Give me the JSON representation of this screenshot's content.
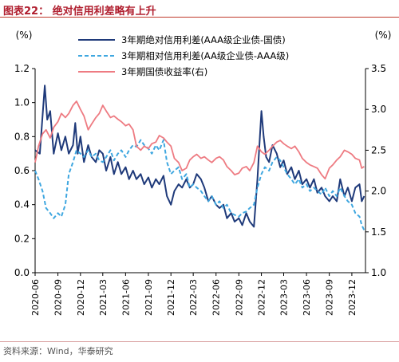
{
  "figure_title": "图表22： 绝对信用利差略有上升",
  "source": "资料来源：Wind，华泰研究",
  "chart_data": {
    "type": "line",
    "title": "",
    "y_left_label": "(%)",
    "y_right_label": "(%)",
    "ylim_left": [
      0.0,
      1.2
    ],
    "ylim_right": [
      1.0,
      3.5
    ],
    "yticks_left": [
      "0.0",
      "0.2",
      "0.4",
      "0.6",
      "0.8",
      "1.0",
      "1.2"
    ],
    "yticks_right": [
      "1.0",
      "1.5",
      "2.0",
      "2.5",
      "3.0",
      "3.5"
    ],
    "xticks": [
      "2020-06",
      "2020-09",
      "2020-12",
      "2021-03",
      "2021-06",
      "2021-09",
      "2021-12",
      "2022-03",
      "2022-06",
      "2022-09",
      "2022-12",
      "2023-03",
      "2023-06",
      "2023-09",
      "2023-12"
    ],
    "legend_placement": "top-right",
    "series": [
      {
        "name": "3年期绝对信用利差(AAA级企业债-国债)",
        "axis": "left",
        "color": "#1f3a7a",
        "style": "solid",
        "points": [
          [
            "2020-06-01",
            0.72
          ],
          [
            "2020-06-20",
            0.7
          ],
          [
            "2020-07-10",
            1.1
          ],
          [
            "2020-07-20",
            0.9
          ],
          [
            "2020-08-01",
            0.95
          ],
          [
            "2020-08-15",
            0.7
          ],
          [
            "2020-09-01",
            0.82
          ],
          [
            "2020-09-15",
            0.72
          ],
          [
            "2020-10-01",
            0.8
          ],
          [
            "2020-10-15",
            0.7
          ],
          [
            "2020-11-01",
            0.75
          ],
          [
            "2020-11-10",
            0.88
          ],
          [
            "2020-11-20",
            0.7
          ],
          [
            "2020-12-01",
            0.8
          ],
          [
            "2020-12-15",
            0.65
          ],
          [
            "2021-01-01",
            0.75
          ],
          [
            "2021-01-15",
            0.68
          ],
          [
            "2021-02-01",
            0.65
          ],
          [
            "2021-02-15",
            0.72
          ],
          [
            "2021-03-01",
            0.7
          ],
          [
            "2021-03-15",
            0.6
          ],
          [
            "2021-04-01",
            0.68
          ],
          [
            "2021-04-15",
            0.58
          ],
          [
            "2021-05-01",
            0.65
          ],
          [
            "2021-05-15",
            0.58
          ],
          [
            "2021-06-01",
            0.62
          ],
          [
            "2021-06-15",
            0.55
          ],
          [
            "2021-07-01",
            0.6
          ],
          [
            "2021-07-15",
            0.55
          ],
          [
            "2021-08-01",
            0.58
          ],
          [
            "2021-08-15",
            0.52
          ],
          [
            "2021-09-01",
            0.56
          ],
          [
            "2021-09-15",
            0.5
          ],
          [
            "2021-10-01",
            0.55
          ],
          [
            "2021-10-15",
            0.52
          ],
          [
            "2021-11-01",
            0.57
          ],
          [
            "2021-11-15",
            0.45
          ],
          [
            "2021-12-01",
            0.4
          ],
          [
            "2021-12-15",
            0.48
          ],
          [
            "2022-01-01",
            0.52
          ],
          [
            "2022-01-15",
            0.5
          ],
          [
            "2022-02-01",
            0.55
          ],
          [
            "2022-02-15",
            0.5
          ],
          [
            "2022-03-01",
            0.52
          ],
          [
            "2022-03-15",
            0.58
          ],
          [
            "2022-04-01",
            0.55
          ],
          [
            "2022-04-15",
            0.5
          ],
          [
            "2022-05-01",
            0.42
          ],
          [
            "2022-05-15",
            0.45
          ],
          [
            "2022-06-01",
            0.4
          ],
          [
            "2022-06-15",
            0.38
          ],
          [
            "2022-07-01",
            0.4
          ],
          [
            "2022-07-15",
            0.32
          ],
          [
            "2022-08-01",
            0.35
          ],
          [
            "2022-08-15",
            0.3
          ],
          [
            "2022-09-01",
            0.32
          ],
          [
            "2022-09-15",
            0.28
          ],
          [
            "2022-10-01",
            0.35
          ],
          [
            "2022-10-15",
            0.3
          ],
          [
            "2022-11-01",
            0.27
          ],
          [
            "2022-11-15",
            0.55
          ],
          [
            "2022-11-25",
            0.8
          ],
          [
            "2022-12-01",
            0.95
          ],
          [
            "2022-12-10",
            0.8
          ],
          [
            "2022-12-20",
            0.68
          ],
          [
            "2023-01-01",
            0.65
          ],
          [
            "2023-01-15",
            0.75
          ],
          [
            "2023-02-01",
            0.7
          ],
          [
            "2023-02-15",
            0.62
          ],
          [
            "2023-03-01",
            0.66
          ],
          [
            "2023-03-15",
            0.58
          ],
          [
            "2023-04-01",
            0.62
          ],
          [
            "2023-04-15",
            0.55
          ],
          [
            "2023-05-01",
            0.6
          ],
          [
            "2023-05-15",
            0.52
          ],
          [
            "2023-06-01",
            0.55
          ],
          [
            "2023-06-15",
            0.5
          ],
          [
            "2023-07-01",
            0.55
          ],
          [
            "2023-07-15",
            0.47
          ],
          [
            "2023-08-01",
            0.5
          ],
          [
            "2023-08-15",
            0.45
          ],
          [
            "2023-09-01",
            0.42
          ],
          [
            "2023-09-15",
            0.45
          ],
          [
            "2023-10-01",
            0.42
          ],
          [
            "2023-10-15",
            0.55
          ],
          [
            "2023-11-01",
            0.45
          ],
          [
            "2023-11-15",
            0.5
          ],
          [
            "2023-12-01",
            0.42
          ],
          [
            "2023-12-15",
            0.5
          ],
          [
            "2024-01-01",
            0.52
          ],
          [
            "2024-01-10",
            0.42
          ],
          [
            "2024-01-20",
            0.45
          ]
        ]
      },
      {
        "name": "3年期相对信用利差(AA级企业债-AAA级)",
        "axis": "left",
        "color": "#3fa7e0",
        "style": "dashed",
        "points": [
          [
            "2020-06-01",
            0.6
          ],
          [
            "2020-06-15",
            0.55
          ],
          [
            "2020-07-01",
            0.48
          ],
          [
            "2020-07-15",
            0.38
          ],
          [
            "2020-08-01",
            0.35
          ],
          [
            "2020-08-15",
            0.32
          ],
          [
            "2020-09-01",
            0.35
          ],
          [
            "2020-09-15",
            0.33
          ],
          [
            "2020-10-01",
            0.4
          ],
          [
            "2020-10-15",
            0.58
          ],
          [
            "2020-11-01",
            0.65
          ],
          [
            "2020-11-15",
            0.72
          ],
          [
            "2020-12-01",
            0.7
          ],
          [
            "2020-12-15",
            0.68
          ],
          [
            "2021-01-01",
            0.72
          ],
          [
            "2021-01-15",
            0.68
          ],
          [
            "2021-02-01",
            0.7
          ],
          [
            "2021-02-15",
            0.66
          ],
          [
            "2021-03-01",
            0.65
          ],
          [
            "2021-03-15",
            0.68
          ],
          [
            "2021-04-01",
            0.72
          ],
          [
            "2021-04-15",
            0.66
          ],
          [
            "2021-05-01",
            0.7
          ],
          [
            "2021-05-15",
            0.72
          ],
          [
            "2021-06-01",
            0.68
          ],
          [
            "2021-06-15",
            0.72
          ],
          [
            "2021-07-01",
            0.75
          ],
          [
            "2021-07-15",
            0.74
          ],
          [
            "2021-08-01",
            0.78
          ],
          [
            "2021-08-15",
            0.75
          ],
          [
            "2021-09-01",
            0.73
          ],
          [
            "2021-09-15",
            0.7
          ],
          [
            "2021-10-01",
            0.75
          ],
          [
            "2021-10-15",
            0.72
          ],
          [
            "2021-11-01",
            0.78
          ],
          [
            "2021-11-15",
            0.65
          ],
          [
            "2021-12-01",
            0.58
          ],
          [
            "2021-12-15",
            0.6
          ],
          [
            "2022-01-01",
            0.62
          ],
          [
            "2022-01-15",
            0.55
          ],
          [
            "2022-02-01",
            0.58
          ],
          [
            "2022-02-15",
            0.5
          ],
          [
            "2022-03-01",
            0.52
          ],
          [
            "2022-03-15",
            0.5
          ],
          [
            "2022-04-01",
            0.48
          ],
          [
            "2022-04-15",
            0.45
          ],
          [
            "2022-05-01",
            0.42
          ],
          [
            "2022-05-15",
            0.45
          ],
          [
            "2022-06-01",
            0.4
          ],
          [
            "2022-06-15",
            0.42
          ],
          [
            "2022-07-01",
            0.38
          ],
          [
            "2022-07-15",
            0.4
          ],
          [
            "2022-08-01",
            0.35
          ],
          [
            "2022-08-15",
            0.34
          ],
          [
            "2022-09-01",
            0.33
          ],
          [
            "2022-09-15",
            0.35
          ],
          [
            "2022-10-01",
            0.36
          ],
          [
            "2022-10-15",
            0.38
          ],
          [
            "2022-11-01",
            0.4
          ],
          [
            "2022-11-15",
            0.5
          ],
          [
            "2022-12-01",
            0.58
          ],
          [
            "2022-12-15",
            0.62
          ],
          [
            "2023-01-01",
            0.6
          ],
          [
            "2023-01-15",
            0.65
          ],
          [
            "2023-02-01",
            0.68
          ],
          [
            "2023-02-15",
            0.66
          ],
          [
            "2023-03-01",
            0.62
          ],
          [
            "2023-03-15",
            0.58
          ],
          [
            "2023-04-01",
            0.55
          ],
          [
            "2023-04-15",
            0.52
          ],
          [
            "2023-05-01",
            0.55
          ],
          [
            "2023-05-15",
            0.5
          ],
          [
            "2023-06-01",
            0.52
          ],
          [
            "2023-06-15",
            0.48
          ],
          [
            "2023-07-01",
            0.5
          ],
          [
            "2023-07-15",
            0.48
          ],
          [
            "2023-08-01",
            0.46
          ],
          [
            "2023-08-15",
            0.5
          ],
          [
            "2023-09-01",
            0.45
          ],
          [
            "2023-09-15",
            0.48
          ],
          [
            "2023-10-01",
            0.45
          ],
          [
            "2023-10-15",
            0.5
          ],
          [
            "2023-11-01",
            0.45
          ],
          [
            "2023-11-15",
            0.42
          ],
          [
            "2023-12-01",
            0.4
          ],
          [
            "2023-12-15",
            0.35
          ],
          [
            "2024-01-01",
            0.33
          ],
          [
            "2024-01-10",
            0.28
          ],
          [
            "2024-01-20",
            0.25
          ]
        ]
      },
      {
        "name": "3年期国债收益率(右)",
        "axis": "right",
        "color": "#ee7b82",
        "style": "solid",
        "points": [
          [
            "2020-06-01",
            2.35
          ],
          [
            "2020-06-15",
            2.55
          ],
          [
            "2020-07-01",
            2.7
          ],
          [
            "2020-07-15",
            2.75
          ],
          [
            "2020-08-01",
            2.65
          ],
          [
            "2020-08-15",
            2.78
          ],
          [
            "2020-09-01",
            2.85
          ],
          [
            "2020-09-15",
            2.95
          ],
          [
            "2020-10-01",
            2.9
          ],
          [
            "2020-10-15",
            2.95
          ],
          [
            "2020-11-01",
            3.05
          ],
          [
            "2020-11-15",
            3.1
          ],
          [
            "2020-12-01",
            3.0
          ],
          [
            "2020-12-15",
            2.92
          ],
          [
            "2021-01-01",
            2.75
          ],
          [
            "2021-01-15",
            2.82
          ],
          [
            "2021-02-01",
            2.9
          ],
          [
            "2021-02-15",
            2.95
          ],
          [
            "2021-03-01",
            3.05
          ],
          [
            "2021-03-15",
            2.98
          ],
          [
            "2021-04-01",
            2.9
          ],
          [
            "2021-04-15",
            2.92
          ],
          [
            "2021-05-01",
            2.88
          ],
          [
            "2021-05-15",
            2.85
          ],
          [
            "2021-06-01",
            2.8
          ],
          [
            "2021-06-15",
            2.82
          ],
          [
            "2021-07-01",
            2.75
          ],
          [
            "2021-07-15",
            2.55
          ],
          [
            "2021-08-01",
            2.5
          ],
          [
            "2021-08-15",
            2.55
          ],
          [
            "2021-09-01",
            2.52
          ],
          [
            "2021-09-15",
            2.58
          ],
          [
            "2021-10-01",
            2.6
          ],
          [
            "2021-10-15",
            2.68
          ],
          [
            "2021-11-01",
            2.65
          ],
          [
            "2021-11-15",
            2.6
          ],
          [
            "2021-12-01",
            2.55
          ],
          [
            "2021-12-15",
            2.4
          ],
          [
            "2022-01-01",
            2.35
          ],
          [
            "2022-01-15",
            2.25
          ],
          [
            "2022-02-01",
            2.28
          ],
          [
            "2022-02-15",
            2.38
          ],
          [
            "2022-03-01",
            2.42
          ],
          [
            "2022-03-15",
            2.45
          ],
          [
            "2022-04-01",
            2.4
          ],
          [
            "2022-04-15",
            2.42
          ],
          [
            "2022-05-01",
            2.38
          ],
          [
            "2022-05-15",
            2.35
          ],
          [
            "2022-06-01",
            2.4
          ],
          [
            "2022-06-15",
            2.42
          ],
          [
            "2022-07-01",
            2.38
          ],
          [
            "2022-07-15",
            2.3
          ],
          [
            "2022-08-01",
            2.25
          ],
          [
            "2022-08-15",
            2.2
          ],
          [
            "2022-09-01",
            2.22
          ],
          [
            "2022-09-15",
            2.28
          ],
          [
            "2022-10-01",
            2.3
          ],
          [
            "2022-10-15",
            2.25
          ],
          [
            "2022-11-01",
            2.35
          ],
          [
            "2022-11-15",
            2.55
          ],
          [
            "2022-12-01",
            2.48
          ],
          [
            "2022-12-15",
            2.45
          ],
          [
            "2023-01-01",
            2.5
          ],
          [
            "2023-01-15",
            2.55
          ],
          [
            "2023-02-01",
            2.6
          ],
          [
            "2023-02-15",
            2.62
          ],
          [
            "2023-03-01",
            2.58
          ],
          [
            "2023-03-15",
            2.55
          ],
          [
            "2023-04-01",
            2.52
          ],
          [
            "2023-04-15",
            2.55
          ],
          [
            "2023-05-01",
            2.48
          ],
          [
            "2023-05-15",
            2.4
          ],
          [
            "2023-06-01",
            2.35
          ],
          [
            "2023-06-15",
            2.32
          ],
          [
            "2023-07-01",
            2.3
          ],
          [
            "2023-07-15",
            2.28
          ],
          [
            "2023-08-01",
            2.2
          ],
          [
            "2023-08-15",
            2.15
          ],
          [
            "2023-09-01",
            2.28
          ],
          [
            "2023-09-15",
            2.32
          ],
          [
            "2023-10-01",
            2.38
          ],
          [
            "2023-10-15",
            2.42
          ],
          [
            "2023-11-01",
            2.5
          ],
          [
            "2023-11-15",
            2.48
          ],
          [
            "2023-12-01",
            2.45
          ],
          [
            "2023-12-15",
            2.4
          ],
          [
            "2024-01-01",
            2.38
          ],
          [
            "2024-01-10",
            2.28
          ],
          [
            "2024-01-20",
            2.3
          ]
        ]
      }
    ]
  }
}
